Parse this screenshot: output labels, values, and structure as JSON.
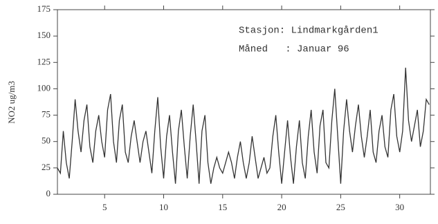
{
  "chart_data": {
    "type": "line",
    "ylabel": "NO2 ug/m3",
    "annotations": [
      "Stasjon: Lindmarkgården1",
      "Måned   : Januar 96"
    ],
    "x": [
      1,
      1.25,
      1.5,
      1.75,
      2,
      2.25,
      2.5,
      2.75,
      3,
      3.25,
      3.5,
      3.75,
      4,
      4.25,
      4.5,
      4.75,
      5,
      5.25,
      5.5,
      5.75,
      6,
      6.25,
      6.5,
      6.75,
      7,
      7.25,
      7.5,
      7.75,
      8,
      8.25,
      8.5,
      8.75,
      9,
      9.25,
      9.5,
      9.75,
      10,
      10.25,
      10.5,
      10.75,
      11,
      11.25,
      11.5,
      11.75,
      12,
      12.25,
      12.5,
      12.75,
      13,
      13.25,
      13.5,
      13.75,
      14,
      14.25,
      14.5,
      14.75,
      15,
      15.25,
      15.5,
      15.75,
      16,
      16.25,
      16.5,
      16.75,
      17,
      17.25,
      17.5,
      17.75,
      18,
      18.25,
      18.5,
      18.75,
      19,
      19.25,
      19.5,
      19.75,
      20,
      20.25,
      20.5,
      20.75,
      21,
      21.25,
      21.5,
      21.75,
      22,
      22.25,
      22.5,
      22.75,
      23,
      23.25,
      23.5,
      23.75,
      24,
      24.25,
      24.5,
      24.75,
      25,
      25.25,
      25.5,
      25.75,
      26,
      26.25,
      26.5,
      26.75,
      27,
      27.25,
      27.5,
      27.75,
      28,
      28.25,
      28.5,
      28.75,
      29,
      29.25,
      29.5,
      29.75,
      30,
      30.25,
      30.5,
      30.75,
      31,
      31.25,
      31.5,
      31.75,
      32,
      32.25,
      32.5
    ],
    "values": [
      25,
      20,
      60,
      30,
      15,
      50,
      90,
      60,
      40,
      70,
      85,
      45,
      30,
      60,
      75,
      50,
      35,
      80,
      95,
      50,
      30,
      70,
      85,
      40,
      30,
      55,
      70,
      50,
      30,
      50,
      60,
      40,
      20,
      60,
      92,
      45,
      15,
      55,
      75,
      40,
      10,
      60,
      80,
      45,
      15,
      55,
      85,
      50,
      10,
      60,
      75,
      30,
      10,
      25,
      35,
      25,
      20,
      30,
      40,
      30,
      15,
      35,
      50,
      30,
      15,
      30,
      55,
      35,
      15,
      25,
      35,
      20,
      25,
      55,
      75,
      40,
      10,
      40,
      70,
      35,
      10,
      45,
      70,
      30,
      15,
      55,
      80,
      40,
      20,
      65,
      80,
      30,
      25,
      70,
      100,
      55,
      10,
      60,
      90,
      60,
      40,
      65,
      85,
      55,
      35,
      55,
      80,
      40,
      30,
      60,
      75,
      45,
      35,
      80,
      95,
      55,
      40,
      60,
      120,
      70,
      50,
      65,
      80,
      45,
      60,
      90,
      85
    ],
    "color": "#333333",
    "xlim": [
      1,
      32.6
    ],
    "xticks": [
      5,
      10,
      15,
      20,
      25,
      30
    ],
    "ylim": [
      0,
      175
    ],
    "yticks": [
      0,
      25,
      50,
      75,
      100,
      125,
      150,
      175
    ]
  }
}
